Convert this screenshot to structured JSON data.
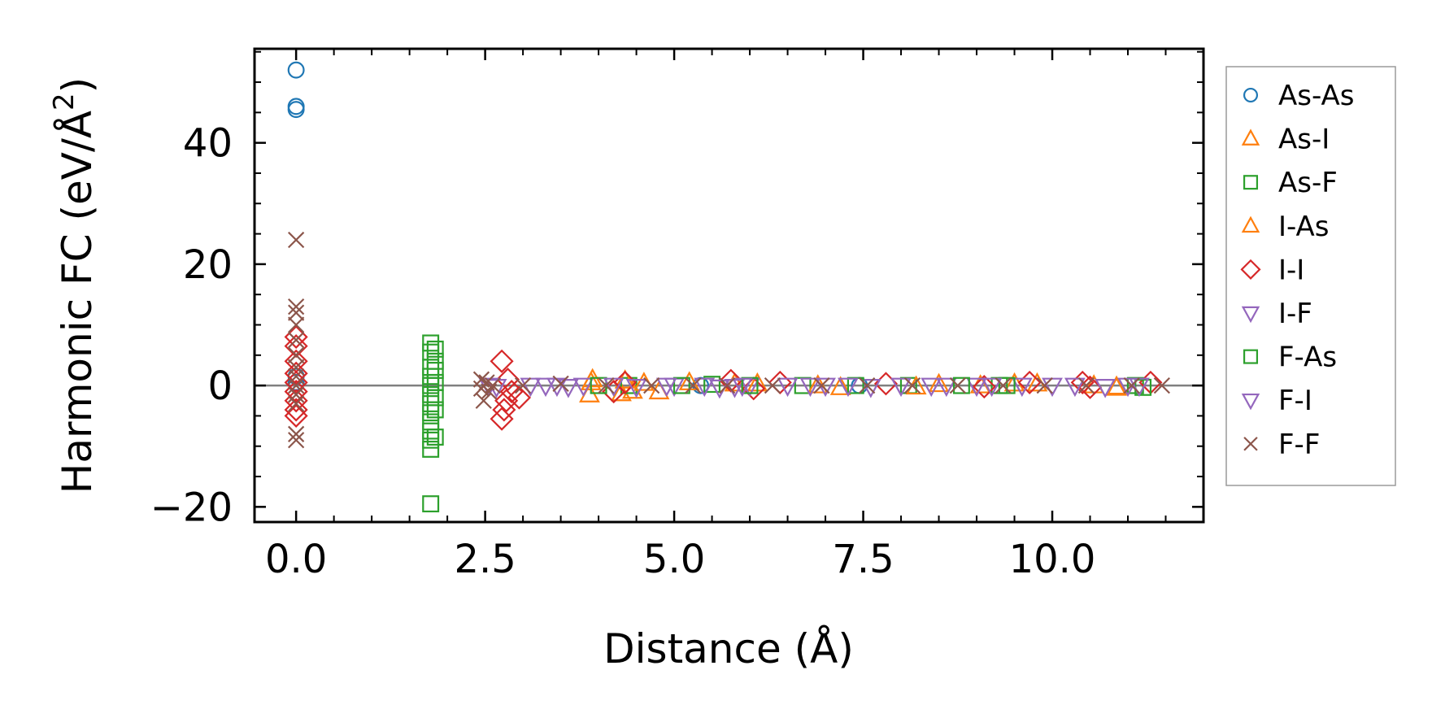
{
  "chart_data": {
    "type": "scatter",
    "title": "",
    "xlabel": "Distance (Å)",
    "ylabel": "Harmonic FC (eV/Å",
    "ylabel_superscript": "2",
    "ylabel_close": ")",
    "xlim": [
      -0.55,
      12.0
    ],
    "ylim": [
      -22.5,
      55.5
    ],
    "xticks": [
      0.0,
      2.5,
      5.0,
      7.5,
      10.0
    ],
    "xtick_labels": [
      "0.0",
      "2.5",
      "5.0",
      "7.5",
      "10.0"
    ],
    "yticks": [
      -20,
      0,
      20,
      40
    ],
    "ytick_labels": [
      "−20",
      "0",
      "20",
      "40"
    ],
    "x_minor_step": 0.5,
    "y_minor_step": 5,
    "zero_line": true,
    "grid": false,
    "legend_position": "outside-right",
    "series": [
      {
        "name": "As-As",
        "marker": "circle",
        "color": "#1f77b4",
        "points": [
          [
            0.0,
            52.0
          ],
          [
            0.0,
            46.0
          ],
          [
            0.0,
            45.5
          ],
          [
            0.0,
            1.5
          ],
          [
            0.0,
            0.5
          ],
          [
            5.35,
            0.0
          ],
          [
            7.45,
            0.0
          ]
        ]
      },
      {
        "name": "As-I",
        "marker": "triangle-up",
        "color": "#ff7f0e",
        "points": [
          [
            3.88,
            -1.5
          ],
          [
            3.92,
            1.0
          ],
          [
            4.3,
            -1.3
          ],
          [
            4.45,
            -0.9
          ],
          [
            4.8,
            -1.0
          ],
          [
            5.2,
            0.5
          ],
          [
            6.1,
            0.3
          ],
          [
            7.2,
            -0.3
          ],
          [
            8.5,
            0.2
          ],
          [
            9.05,
            0.0
          ],
          [
            9.5,
            0.3
          ],
          [
            10.55,
            0.0
          ],
          [
            10.85,
            -0.2
          ]
        ]
      },
      {
        "name": "As-F",
        "marker": "square",
        "color": "#2ca02c",
        "points": [
          [
            1.78,
            -19.5
          ],
          [
            1.78,
            -10.5
          ],
          [
            1.78,
            -9.0
          ],
          [
            1.78,
            -7.5
          ],
          [
            1.78,
            -6.0
          ],
          [
            1.78,
            -4.5
          ],
          [
            1.78,
            -3.0
          ],
          [
            1.78,
            -1.5
          ],
          [
            1.78,
            0.0
          ],
          [
            1.78,
            1.5
          ],
          [
            1.78,
            3.0
          ],
          [
            1.78,
            5.5
          ],
          [
            1.78,
            7.0
          ],
          [
            1.84,
            -8.5
          ],
          [
            1.84,
            -4.0
          ],
          [
            1.84,
            -2.0
          ],
          [
            1.84,
            0.5
          ],
          [
            1.84,
            2.5
          ],
          [
            1.84,
            4.0
          ],
          [
            1.84,
            6.0
          ],
          [
            4.4,
            0.0
          ],
          [
            5.5,
            0.2
          ],
          [
            6.7,
            0.0
          ],
          [
            8.1,
            0.0
          ],
          [
            9.3,
            0.0
          ],
          [
            11.1,
            0.0
          ]
        ]
      },
      {
        "name": "I-As",
        "marker": "triangle-up",
        "color": "#ff7f0e",
        "points": [
          [
            3.9,
            0.5
          ],
          [
            4.35,
            0.8
          ],
          [
            4.6,
            0.4
          ],
          [
            5.8,
            0.3
          ],
          [
            6.9,
            0.0
          ],
          [
            8.2,
            -0.2
          ],
          [
            9.8,
            0.3
          ],
          [
            10.85,
            -0.4
          ]
        ]
      },
      {
        "name": "I-I",
        "marker": "diamond",
        "color": "#d62728",
        "points": [
          [
            0.0,
            8.0
          ],
          [
            0.0,
            6.5
          ],
          [
            0.0,
            4.0
          ],
          [
            0.0,
            2.0
          ],
          [
            0.0,
            0.5
          ],
          [
            0.0,
            -1.0
          ],
          [
            0.0,
            -2.5
          ],
          [
            0.0,
            -4.0
          ],
          [
            0.0,
            -5.0
          ],
          [
            2.72,
            4.0
          ],
          [
            2.72,
            -5.5
          ],
          [
            2.75,
            -4.0
          ],
          [
            2.78,
            -2.5
          ],
          [
            2.8,
            1.0
          ],
          [
            2.85,
            -1.0
          ],
          [
            2.95,
            -2.0
          ],
          [
            4.2,
            -1.0
          ],
          [
            4.35,
            0.5
          ],
          [
            5.75,
            0.8
          ],
          [
            6.05,
            -0.5
          ],
          [
            6.4,
            0.5
          ],
          [
            7.8,
            0.3
          ],
          [
            9.1,
            -0.2
          ],
          [
            9.7,
            0.5
          ],
          [
            10.4,
            0.5
          ],
          [
            10.5,
            -0.3
          ],
          [
            11.3,
            0.5
          ]
        ]
      },
      {
        "name": "I-F",
        "marker": "triangle-down",
        "color": "#9467bd",
        "points": [
          [
            3.3,
            0.0
          ],
          [
            3.6,
            -0.2
          ],
          [
            3.8,
            0.0
          ],
          [
            4.5,
            -0.2
          ],
          [
            5.0,
            0.0
          ],
          [
            5.4,
            0.0
          ],
          [
            5.6,
            -0.3
          ],
          [
            5.8,
            -0.2
          ],
          [
            6.0,
            0.0
          ],
          [
            6.5,
            0.0
          ],
          [
            7.0,
            0.0
          ],
          [
            7.6,
            -0.2
          ],
          [
            8.0,
            0.0
          ],
          [
            8.6,
            0.0
          ],
          [
            9.0,
            0.0
          ],
          [
            9.6,
            0.0
          ],
          [
            10.3,
            0.0
          ],
          [
            10.7,
            -0.2
          ]
        ]
      },
      {
        "name": "F-As",
        "marker": "square",
        "color": "#2ca02c",
        "points": [
          [
            4.0,
            0.0
          ],
          [
            5.1,
            0.0
          ],
          [
            6.0,
            0.0
          ],
          [
            7.4,
            0.0
          ],
          [
            8.8,
            0.0
          ],
          [
            9.4,
            0.0
          ],
          [
            11.2,
            -0.3
          ]
        ]
      },
      {
        "name": "F-I",
        "marker": "triangle-down",
        "color": "#9467bd",
        "points": [
          [
            2.55,
            0.0
          ],
          [
            2.65,
            -0.2
          ],
          [
            3.1,
            0.0
          ],
          [
            3.45,
            0.0
          ],
          [
            4.2,
            0.0
          ],
          [
            4.9,
            0.0
          ],
          [
            5.9,
            0.0
          ],
          [
            6.8,
            0.0
          ],
          [
            7.3,
            0.0
          ],
          [
            8.4,
            0.0
          ],
          [
            9.2,
            0.0
          ],
          [
            10.0,
            0.0
          ],
          [
            11.0,
            0.0
          ],
          [
            11.15,
            0.0
          ]
        ]
      },
      {
        "name": "F-F",
        "marker": "x",
        "color": "#8c564b",
        "points": [
          [
            0.0,
            24.0
          ],
          [
            0.0,
            13.0
          ],
          [
            0.0,
            12.0
          ],
          [
            0.0,
            10.0
          ],
          [
            0.0,
            7.5
          ],
          [
            0.0,
            5.0
          ],
          [
            0.0,
            3.0
          ],
          [
            0.0,
            1.5
          ],
          [
            0.0,
            0.0
          ],
          [
            0.0,
            -1.5
          ],
          [
            0.0,
            -3.0
          ],
          [
            0.0,
            -8.0
          ],
          [
            0.0,
            -9.0
          ],
          [
            2.45,
            1.0
          ],
          [
            2.45,
            -0.5
          ],
          [
            2.48,
            -2.5
          ],
          [
            2.52,
            0.5
          ],
          [
            2.55,
            -1.0
          ],
          [
            2.6,
            0.0
          ],
          [
            3.0,
            0.0
          ],
          [
            3.5,
            0.3
          ],
          [
            4.1,
            0.0
          ],
          [
            4.7,
            0.0
          ],
          [
            5.25,
            0.0
          ],
          [
            5.7,
            0.0
          ],
          [
            6.3,
            0.0
          ],
          [
            6.95,
            0.0
          ],
          [
            7.55,
            0.0
          ],
          [
            8.15,
            0.0
          ],
          [
            8.75,
            0.0
          ],
          [
            9.35,
            0.0
          ],
          [
            9.9,
            0.0
          ],
          [
            10.45,
            0.0
          ],
          [
            11.05,
            0.0
          ],
          [
            11.45,
            0.0
          ]
        ]
      }
    ]
  }
}
